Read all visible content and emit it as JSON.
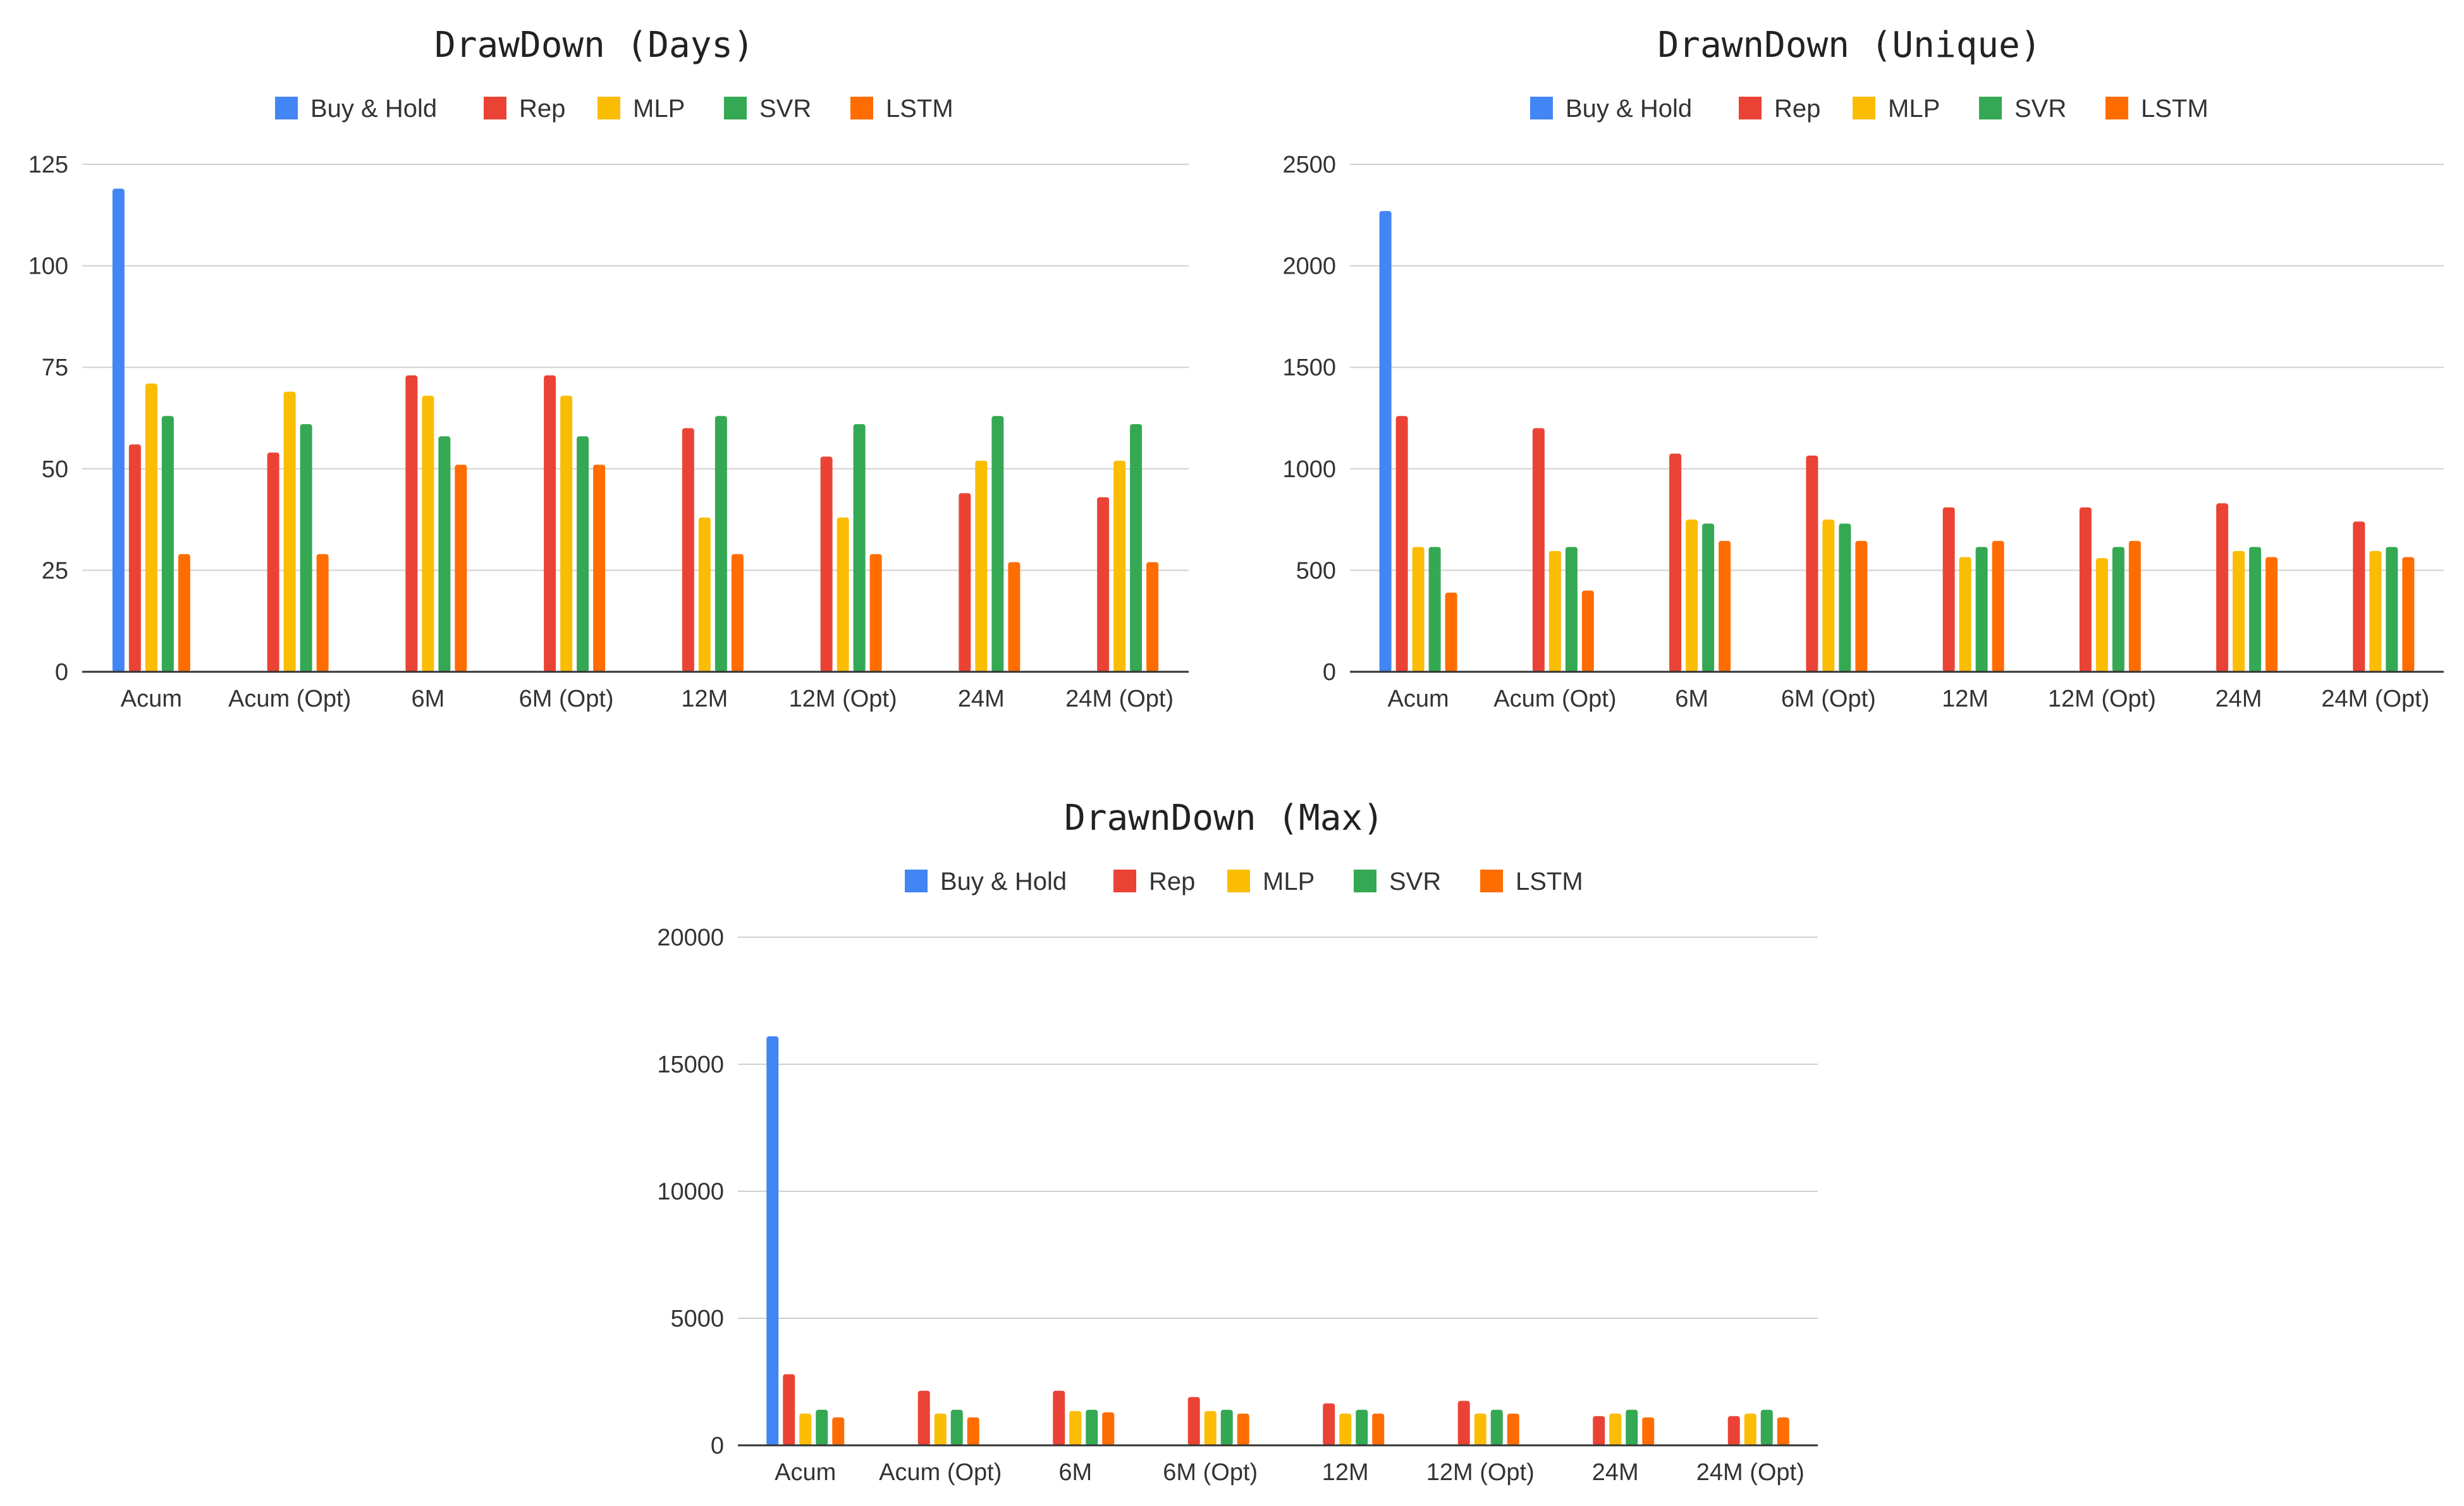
{
  "chart_data": [
    {
      "type": "bar",
      "title": "DrawDown (Days)",
      "categories": [
        "Acum",
        "Acum (Opt)",
        "6M",
        "6M (Opt)",
        "12M",
        "12M (Opt)",
        "24M",
        "24M (Opt)"
      ],
      "series": [
        {
          "name": "Buy & Hold",
          "color": "#4285F4",
          "values": [
            119,
            0,
            0,
            0,
            0,
            0,
            0,
            0
          ]
        },
        {
          "name": "Rep",
          "color": "#EA4335",
          "values": [
            56,
            54,
            73,
            73,
            60,
            53,
            44,
            43
          ]
        },
        {
          "name": "MLP",
          "color": "#FBBC04",
          "values": [
            71,
            69,
            68,
            68,
            38,
            38,
            52,
            52
          ]
        },
        {
          "name": "SVR",
          "color": "#34A853",
          "values": [
            63,
            61,
            58,
            58,
            63,
            61,
            63,
            61
          ]
        },
        {
          "name": "LSTM",
          "color": "#FF6D01",
          "values": [
            29,
            29,
            51,
            51,
            29,
            29,
            27,
            27
          ]
        }
      ],
      "yticks": [
        0,
        25,
        50,
        75,
        100,
        125
      ],
      "ylim": [
        0,
        125
      ],
      "legend": "top"
    },
    {
      "type": "bar",
      "title": "DrawnDown (Unique)",
      "categories": [
        "Acum",
        "Acum (Opt)",
        "6M",
        "6M (Opt)",
        "12M",
        "12M (Opt)",
        "24M",
        "24M (Opt)"
      ],
      "series": [
        {
          "name": "Buy & Hold",
          "color": "#4285F4",
          "values": [
            2270,
            0,
            0,
            0,
            0,
            0,
            0,
            0
          ]
        },
        {
          "name": "Rep",
          "color": "#EA4335",
          "values": [
            1260,
            1200,
            1075,
            1065,
            810,
            810,
            830,
            740
          ]
        },
        {
          "name": "MLP",
          "color": "#FBBC04",
          "values": [
            615,
            595,
            750,
            750,
            565,
            560,
            595,
            595
          ]
        },
        {
          "name": "SVR",
          "color": "#34A853",
          "values": [
            615,
            615,
            730,
            730,
            615,
            615,
            615,
            615
          ]
        },
        {
          "name": "LSTM",
          "color": "#FF6D01",
          "values": [
            390,
            400,
            645,
            645,
            645,
            645,
            565,
            565
          ]
        }
      ],
      "yticks": [
        0,
        500,
        1000,
        1500,
        2000,
        2500
      ],
      "ylim": [
        0,
        2500
      ],
      "legend": "top"
    },
    {
      "type": "bar",
      "title": "DrawnDown (Max)",
      "categories": [
        "Acum",
        "Acum (Opt)",
        "6M",
        "6M (Opt)",
        "12M",
        "12M (Opt)",
        "24M",
        "24M (Opt)"
      ],
      "series": [
        {
          "name": "Buy & Hold",
          "color": "#4285F4",
          "values": [
            16100,
            0,
            0,
            0,
            0,
            0,
            0,
            0
          ]
        },
        {
          "name": "Rep",
          "color": "#EA4335",
          "values": [
            2800,
            2150,
            2150,
            1900,
            1650,
            1750,
            1150,
            1150
          ]
        },
        {
          "name": "MLP",
          "color": "#FBBC04",
          "values": [
            1250,
            1250,
            1350,
            1350,
            1250,
            1250,
            1250,
            1250
          ]
        },
        {
          "name": "SVR",
          "color": "#34A853",
          "values": [
            1400,
            1400,
            1400,
            1400,
            1400,
            1400,
            1400,
            1400
          ]
        },
        {
          "name": "LSTM",
          "color": "#FF6D01",
          "values": [
            1100,
            1100,
            1300,
            1250,
            1250,
            1250,
            1100,
            1100
          ]
        }
      ],
      "yticks": [
        0,
        5000,
        10000,
        15000,
        20000
      ],
      "ylim": [
        0,
        20000
      ],
      "legend": "top"
    }
  ]
}
